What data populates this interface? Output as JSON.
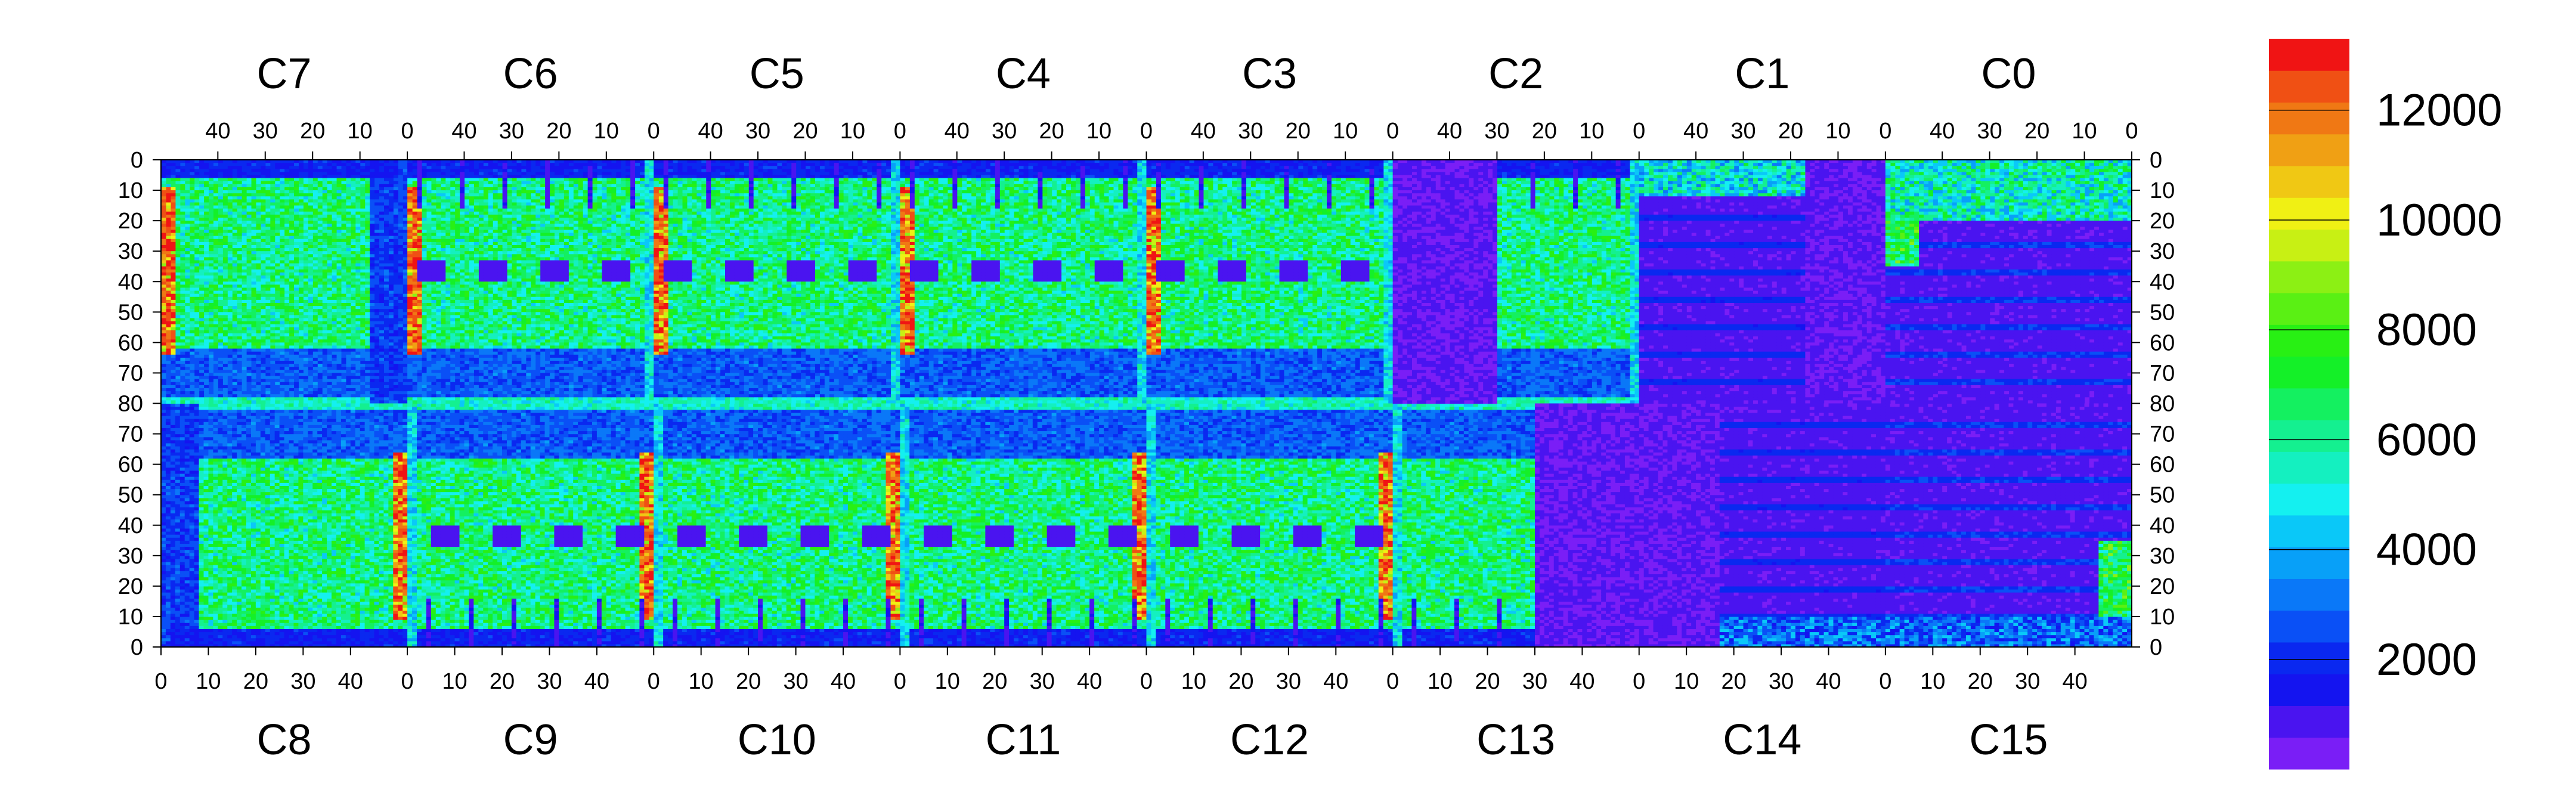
{
  "chart_data": {
    "type": "heatmap",
    "top_chip_labels": [
      "C7",
      "C6",
      "C5",
      "C4",
      "C3",
      "C2",
      "C1",
      "C0"
    ],
    "bottom_chip_labels": [
      "C8",
      "C9",
      "C10",
      "C11",
      "C12",
      "C13",
      "C14",
      "C15"
    ],
    "x_tick_labels_top": [
      "40",
      "30",
      "20",
      "10",
      "0"
    ],
    "x_tick_labels_bottom": [
      "0",
      "10",
      "20",
      "30",
      "40"
    ],
    "y_tick_labels": [
      "0",
      "10",
      "20",
      "30",
      "40",
      "50",
      "60",
      "70",
      "80",
      "70",
      "60",
      "50",
      "40",
      "30",
      "20",
      "10",
      "0"
    ],
    "colorbar": {
      "min": 0,
      "max": 13300,
      "tick_values": [
        2000,
        4000,
        6000,
        8000,
        10000,
        12000
      ],
      "tick_labels": [
        "2000",
        "4000",
        "6000",
        "8000",
        "10000",
        "12000"
      ],
      "colors": [
        "#7A1EF6",
        "#4A14F0",
        "#1414F0",
        "#0A28F0",
        "#0A50F6",
        "#0A78F8",
        "#08A0F8",
        "#0AC8F8",
        "#14F0F0",
        "#14F0C0",
        "#14F090",
        "#14F060",
        "#14F028",
        "#28F014",
        "#5AF014",
        "#8CF014",
        "#C8F014",
        "#F0F014",
        "#F0C814",
        "#F0A014",
        "#F07814",
        "#F05014",
        "#F01414"
      ]
    },
    "grid": false,
    "legend_position": "right"
  }
}
